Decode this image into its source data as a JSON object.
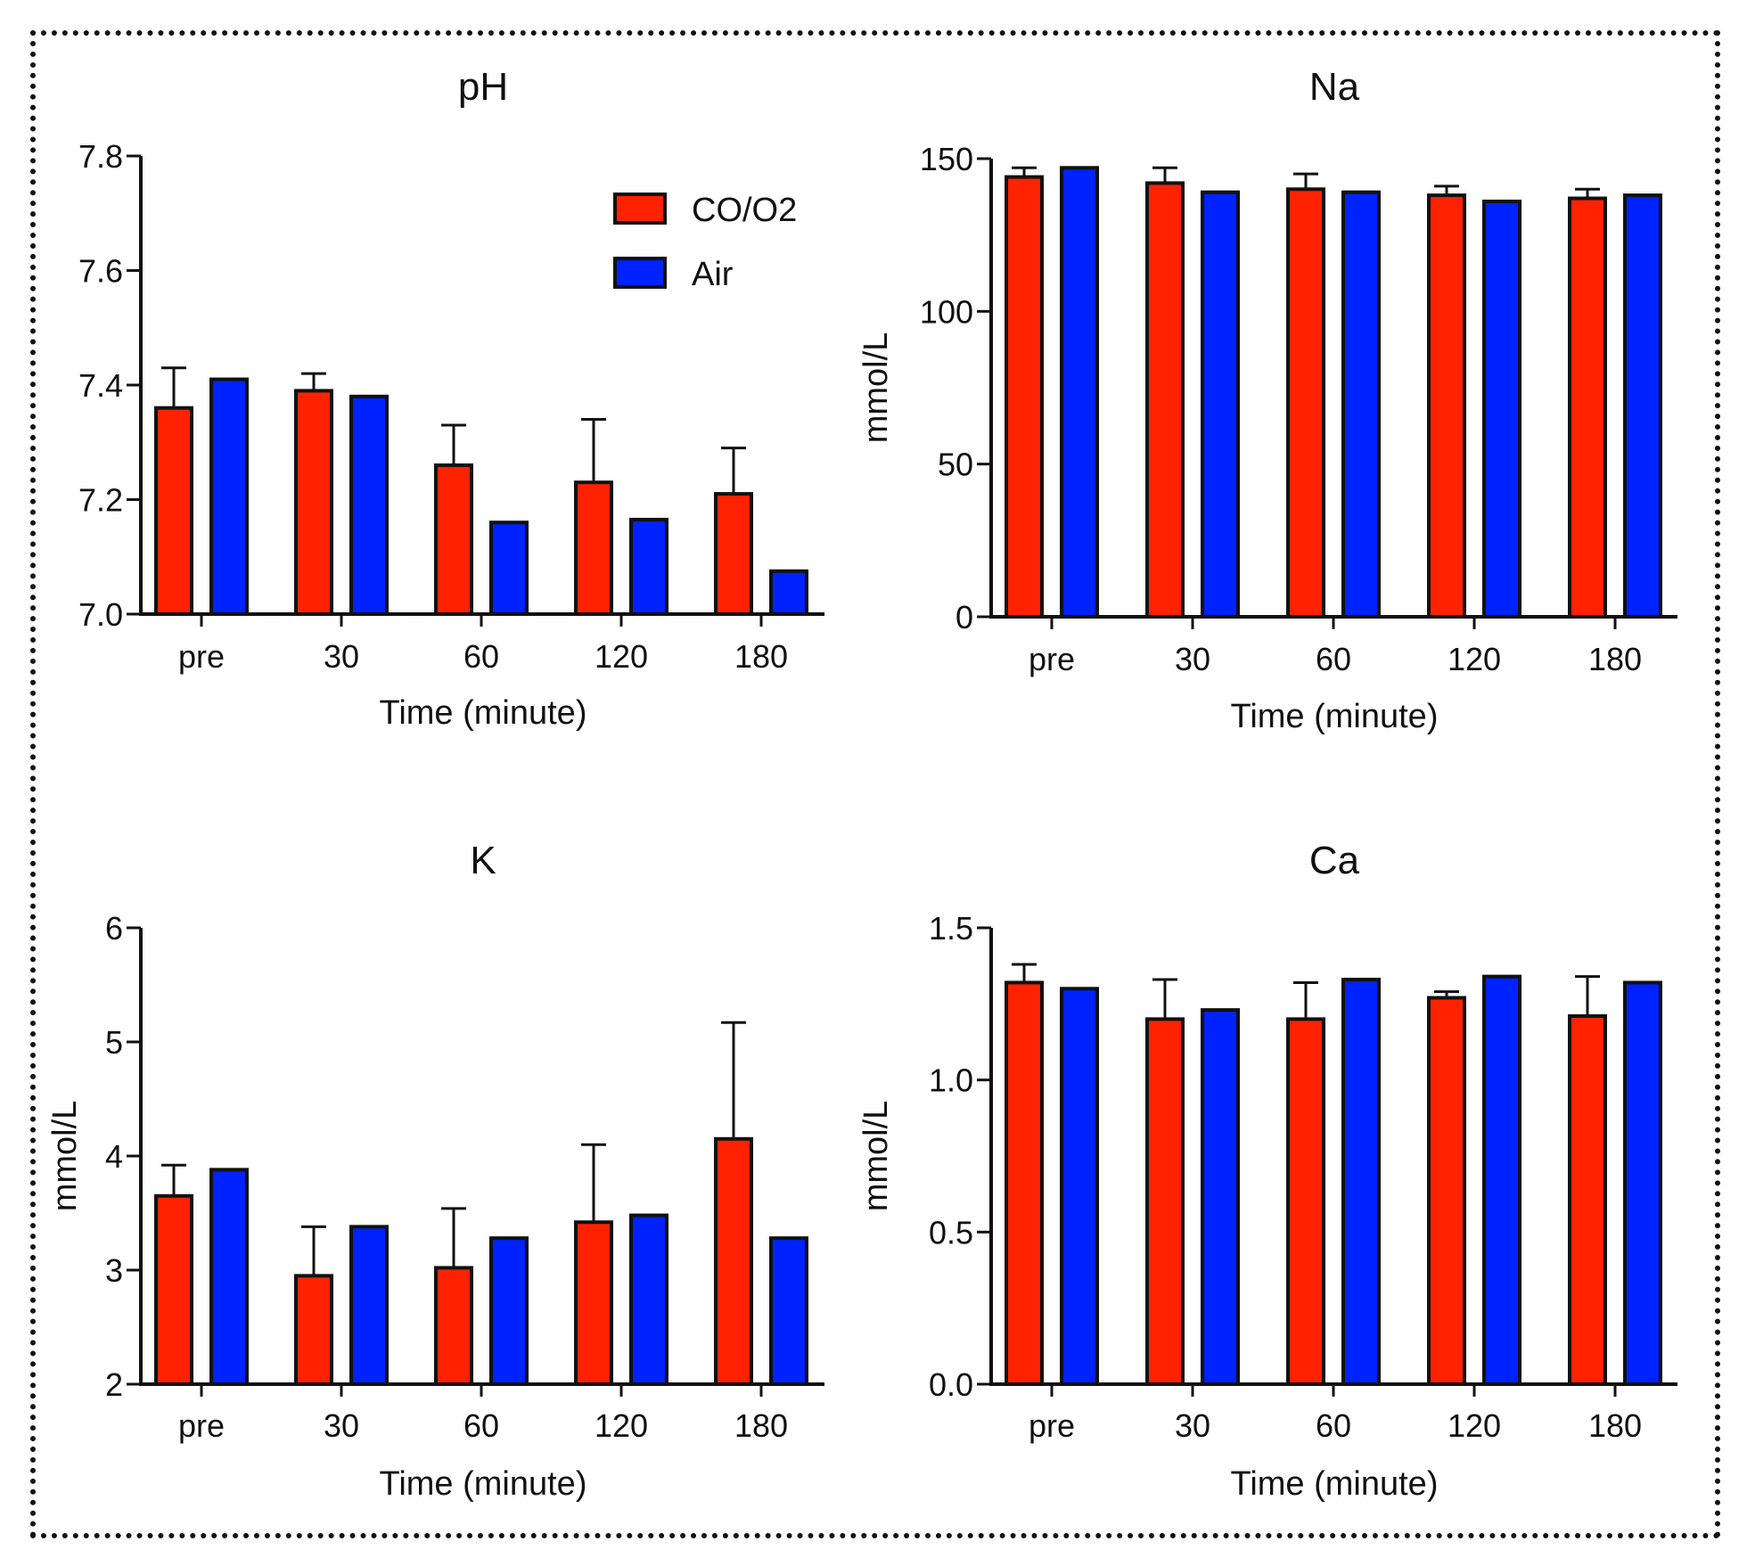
{
  "chart_data": [
    {
      "type": "bar",
      "title": "pH",
      "xlabel": "Time (minute)",
      "ylabel": "",
      "categories": [
        "pre",
        "30",
        "60",
        "120",
        "180"
      ],
      "ylim": [
        7.0,
        7.8
      ],
      "yticks": [
        "7.0",
        "7.2",
        "7.4",
        "7.6",
        "7.8"
      ],
      "yticks_values": [
        7.0,
        7.2,
        7.4,
        7.6,
        7.8
      ],
      "legend": {
        "position": "top-right",
        "entries": [
          "CO/O2",
          "Air"
        ]
      },
      "series": [
        {
          "name": "CO/O2",
          "color": "#ff2200",
          "values": [
            7.36,
            7.39,
            7.26,
            7.23,
            7.21
          ],
          "error": [
            0.07,
            0.03,
            0.07,
            0.11,
            0.08
          ]
        },
        {
          "name": "Air",
          "color": "#0022ff",
          "values": [
            7.41,
            7.38,
            7.16,
            7.165,
            7.075
          ],
          "error": [
            0,
            0,
            0,
            0,
            0
          ]
        }
      ]
    },
    {
      "type": "bar",
      "title": "Na",
      "xlabel": "Time (minute)",
      "ylabel": "mmol/L",
      "categories": [
        "pre",
        "30",
        "60",
        "120",
        "180"
      ],
      "ylim": [
        0,
        150
      ],
      "yticks": [
        "0",
        "50",
        "100",
        "150"
      ],
      "yticks_values": [
        0,
        50,
        100,
        150
      ],
      "series": [
        {
          "name": "CO/O2",
          "color": "#ff2200",
          "values": [
            144,
            142,
            140,
            138,
            137
          ],
          "error": [
            3,
            5,
            5,
            3,
            3
          ]
        },
        {
          "name": "Air",
          "color": "#0022ff",
          "values": [
            147,
            139,
            139,
            136,
            138
          ],
          "error": [
            0,
            0,
            0,
            0,
            0
          ]
        }
      ]
    },
    {
      "type": "bar",
      "title": "K",
      "xlabel": "Time (minute)",
      "ylabel": "mmol/L",
      "categories": [
        "pre",
        "30",
        "60",
        "120",
        "180"
      ],
      "ylim": [
        2,
        6
      ],
      "yticks": [
        "2",
        "3",
        "4",
        "5",
        "6"
      ],
      "yticks_values": [
        2,
        3,
        4,
        5,
        6
      ],
      "series": [
        {
          "name": "CO/O2",
          "color": "#ff2200",
          "values": [
            3.65,
            2.95,
            3.02,
            3.42,
            4.15
          ],
          "error": [
            0.27,
            0.43,
            0.52,
            0.68,
            1.02
          ]
        },
        {
          "name": "Air",
          "color": "#0022ff",
          "values": [
            3.88,
            3.38,
            3.28,
            3.48,
            3.28
          ],
          "error": [
            0,
            0,
            0,
            0,
            0
          ]
        }
      ]
    },
    {
      "type": "bar",
      "title": "Ca",
      "xlabel": "Time (minute)",
      "ylabel": "mmol/L",
      "categories": [
        "pre",
        "30",
        "60",
        "120",
        "180"
      ],
      "ylim": [
        0.0,
        1.5
      ],
      "yticks": [
        "0.0",
        "0.5",
        "1.0",
        "1.5"
      ],
      "yticks_values": [
        0.0,
        0.5,
        1.0,
        1.5
      ],
      "series": [
        {
          "name": "CO/O2",
          "color": "#ff2200",
          "values": [
            1.32,
            1.2,
            1.2,
            1.27,
            1.21
          ],
          "error": [
            0.06,
            0.13,
            0.12,
            0.02,
            0.13
          ]
        },
        {
          "name": "Air",
          "color": "#0022ff",
          "values": [
            1.3,
            1.23,
            1.33,
            1.34,
            1.32
          ],
          "error": [
            0,
            0,
            0,
            0,
            0
          ]
        }
      ]
    }
  ]
}
